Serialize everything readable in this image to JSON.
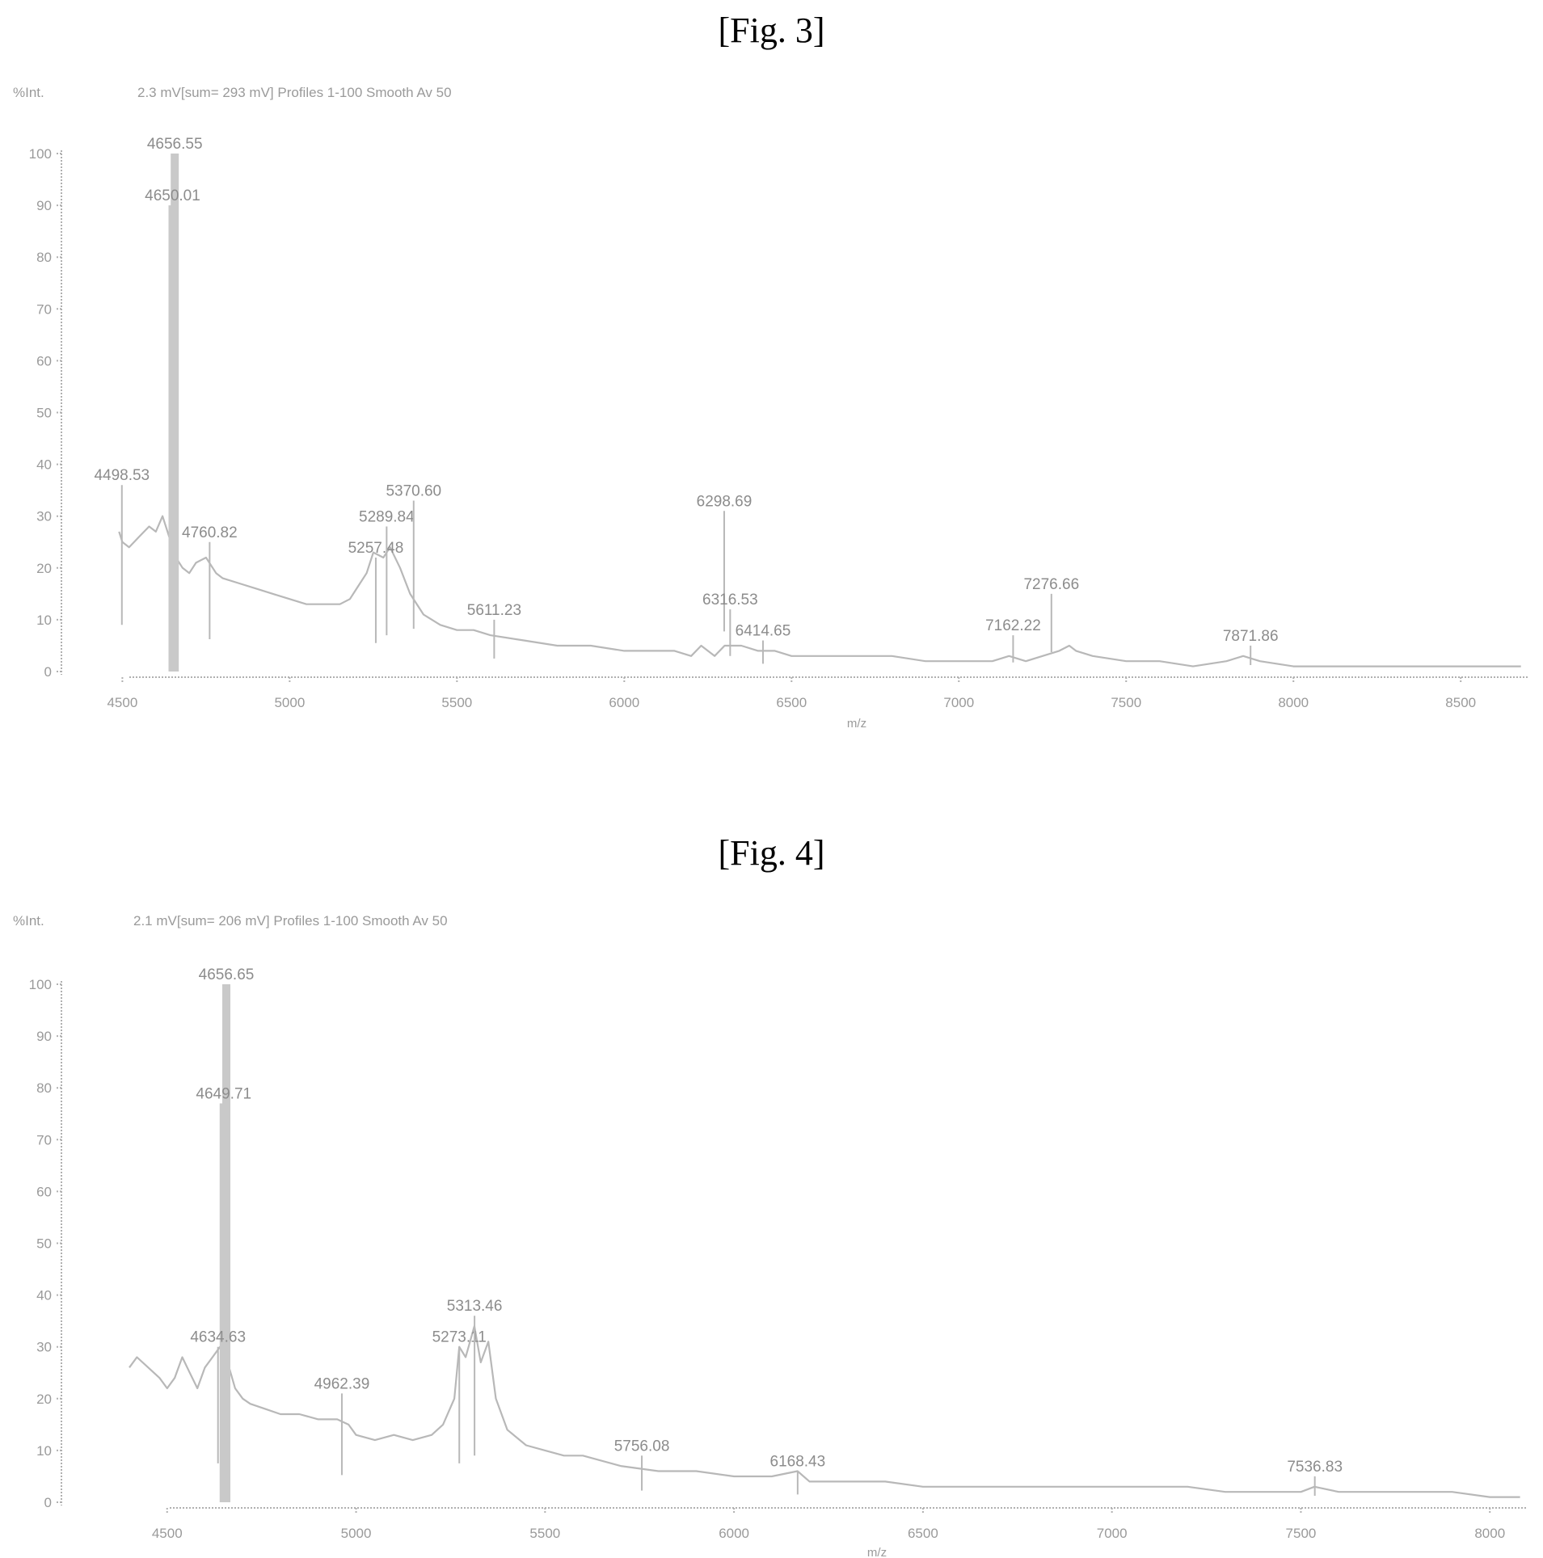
{
  "figures": {
    "fig3": {
      "title": "[Fig. 3]"
    },
    "fig4": {
      "title": "[Fig. 4]"
    }
  },
  "chart_data": [
    {
      "type": "line",
      "title": "2.3 mV[sum= 293 mV] Profiles 1-100 Smooth Av 50",
      "ylabel": "%Int.",
      "xlabel": "m/z",
      "ylim": [
        0,
        100
      ],
      "xlim": [
        4400,
        8700
      ],
      "yticks": [
        0,
        10,
        20,
        30,
        40,
        50,
        60,
        70,
        80,
        90,
        100
      ],
      "xticks": [
        4500,
        5000,
        5500,
        6000,
        6500,
        7000,
        7500,
        8000,
        8500
      ],
      "ytick_labels": [
        "0",
        "10",
        "20",
        "30",
        "40",
        "50",
        "60",
        "70",
        "80",
        "90",
        "100"
      ],
      "xtick_labels": [
        "4500",
        "5000",
        "5500",
        "6000",
        "6500",
        "7000",
        "7500",
        "8000",
        "8500"
      ],
      "baseline": [
        [
          4490,
          27
        ],
        [
          4500,
          25
        ],
        [
          4520,
          24
        ],
        [
          4550,
          26
        ],
        [
          4580,
          28
        ],
        [
          4600,
          27
        ],
        [
          4620,
          30
        ],
        [
          4640,
          26
        ],
        [
          4660,
          22
        ],
        [
          4680,
          20
        ],
        [
          4700,
          19
        ],
        [
          4720,
          21
        ],
        [
          4750,
          22
        ],
        [
          4780,
          19
        ],
        [
          4800,
          18
        ],
        [
          4850,
          17
        ],
        [
          4900,
          16
        ],
        [
          4950,
          15
        ],
        [
          5000,
          14
        ],
        [
          5050,
          13
        ],
        [
          5100,
          13
        ],
        [
          5150,
          13
        ],
        [
          5180,
          14
        ],
        [
          5200,
          16
        ],
        [
          5230,
          19
        ],
        [
          5250,
          23
        ],
        [
          5280,
          22
        ],
        [
          5300,
          24
        ],
        [
          5330,
          20
        ],
        [
          5360,
          15
        ],
        [
          5400,
          11
        ],
        [
          5450,
          9
        ],
        [
          5500,
          8
        ],
        [
          5550,
          8
        ],
        [
          5600,
          7
        ],
        [
          5700,
          6
        ],
        [
          5800,
          5
        ],
        [
          5900,
          5
        ],
        [
          6000,
          4
        ],
        [
          6100,
          4
        ],
        [
          6150,
          4
        ],
        [
          6200,
          3
        ],
        [
          6230,
          5
        ],
        [
          6270,
          3
        ],
        [
          6300,
          5
        ],
        [
          6350,
          5
        ],
        [
          6400,
          4
        ],
        [
          6450,
          4
        ],
        [
          6500,
          3
        ],
        [
          6600,
          3
        ],
        [
          6700,
          3
        ],
        [
          6800,
          3
        ],
        [
          6900,
          2
        ],
        [
          7000,
          2
        ],
        [
          7100,
          2
        ],
        [
          7150,
          3
        ],
        [
          7200,
          2
        ],
        [
          7250,
          3
        ],
        [
          7300,
          4
        ],
        [
          7330,
          5
        ],
        [
          7350,
          4
        ],
        [
          7400,
          3
        ],
        [
          7500,
          2
        ],
        [
          7600,
          2
        ],
        [
          7700,
          1
        ],
        [
          7800,
          2
        ],
        [
          7850,
          3
        ],
        [
          7900,
          2
        ],
        [
          8000,
          1
        ],
        [
          8100,
          1
        ],
        [
          8200,
          1
        ],
        [
          8300,
          1
        ],
        [
          8400,
          1
        ],
        [
          8500,
          1
        ],
        [
          8600,
          1
        ],
        [
          8680,
          1
        ]
      ],
      "peaks": [
        {
          "x": 4498.53,
          "y": 36,
          "label": "4498.53"
        },
        {
          "x": 4656.55,
          "y": 100,
          "label": "4656.55"
        },
        {
          "x": 4650.01,
          "y": 90,
          "label": "4650.01"
        },
        {
          "x": 4760.82,
          "y": 25,
          "label": "4760.82"
        },
        {
          "x": 5257.48,
          "y": 22,
          "label": "5257.48"
        },
        {
          "x": 5289.84,
          "y": 28,
          "label": "5289.84"
        },
        {
          "x": 5370.6,
          "y": 33,
          "label": "5370.60"
        },
        {
          "x": 5611.23,
          "y": 10,
          "label": "5611.23"
        },
        {
          "x": 6298.69,
          "y": 31,
          "label": "6298.69"
        },
        {
          "x": 6316.53,
          "y": 12,
          "label": "6316.53"
        },
        {
          "x": 6414.65,
          "y": 6,
          "label": "6414.65"
        },
        {
          "x": 7162.22,
          "y": 7,
          "label": "7162.22"
        },
        {
          "x": 7276.66,
          "y": 15,
          "label": "7276.66"
        },
        {
          "x": 7871.86,
          "y": 5,
          "label": "7871.86"
        }
      ]
    },
    {
      "type": "line",
      "title": "2.1 mV[sum= 206 mV] Profiles 1-100 Smooth Av 50",
      "ylabel": "%Int.",
      "xlabel": "m/z",
      "ylim": [
        0,
        100
      ],
      "xlim": [
        4400,
        8100
      ],
      "yticks": [
        0,
        10,
        20,
        30,
        40,
        50,
        60,
        70,
        80,
        90,
        100
      ],
      "xticks": [
        4500,
        5000,
        5500,
        6000,
        6500,
        7000,
        7500,
        8000
      ],
      "ytick_labels": [
        "0",
        "10",
        "20",
        "30",
        "40",
        "50",
        "60",
        "70",
        "80",
        "90",
        "100"
      ],
      "xtick_labels": [
        "4500",
        "5000",
        "5500",
        "6000",
        "6500",
        "7000",
        "7500",
        "8000"
      ],
      "baseline": [
        [
          4400,
          26
        ],
        [
          4420,
          28
        ],
        [
          4450,
          26
        ],
        [
          4480,
          24
        ],
        [
          4500,
          22
        ],
        [
          4520,
          24
        ],
        [
          4540,
          28
        ],
        [
          4560,
          25
        ],
        [
          4580,
          22
        ],
        [
          4600,
          26
        ],
        [
          4620,
          28
        ],
        [
          4640,
          30
        ],
        [
          4660,
          27
        ],
        [
          4680,
          22
        ],
        [
          4700,
          20
        ],
        [
          4720,
          19
        ],
        [
          4760,
          18
        ],
        [
          4800,
          17
        ],
        [
          4850,
          17
        ],
        [
          4900,
          16
        ],
        [
          4950,
          16
        ],
        [
          4980,
          15
        ],
        [
          5000,
          13
        ],
        [
          5050,
          12
        ],
        [
          5100,
          13
        ],
        [
          5150,
          12
        ],
        [
          5200,
          13
        ],
        [
          5230,
          15
        ],
        [
          5260,
          20
        ],
        [
          5273,
          30
        ],
        [
          5290,
          28
        ],
        [
          5313,
          34
        ],
        [
          5330,
          27
        ],
        [
          5350,
          31
        ],
        [
          5370,
          20
        ],
        [
          5400,
          14
        ],
        [
          5450,
          11
        ],
        [
          5500,
          10
        ],
        [
          5550,
          9
        ],
        [
          5600,
          9
        ],
        [
          5700,
          7
        ],
        [
          5800,
          6
        ],
        [
          5900,
          6
        ],
        [
          6000,
          5
        ],
        [
          6100,
          5
        ],
        [
          6168,
          6
        ],
        [
          6200,
          4
        ],
        [
          6300,
          4
        ],
        [
          6400,
          4
        ],
        [
          6500,
          3
        ],
        [
          6600,
          3
        ],
        [
          6700,
          3
        ],
        [
          6800,
          3
        ],
        [
          6900,
          3
        ],
        [
          7000,
          3
        ],
        [
          7100,
          3
        ],
        [
          7200,
          3
        ],
        [
          7300,
          2
        ],
        [
          7400,
          2
        ],
        [
          7500,
          2
        ],
        [
          7536,
          3
        ],
        [
          7600,
          2
        ],
        [
          7700,
          2
        ],
        [
          7800,
          2
        ],
        [
          7900,
          2
        ],
        [
          8000,
          1
        ],
        [
          8080,
          1
        ]
      ],
      "peaks": [
        {
          "x": 4656.65,
          "y": 100,
          "label": "4656.65"
        },
        {
          "x": 4649.71,
          "y": 77,
          "label": "4649.71"
        },
        {
          "x": 4634.63,
          "y": 30,
          "label": "4634.63"
        },
        {
          "x": 4962.39,
          "y": 21,
          "label": "4962.39"
        },
        {
          "x": 5273.11,
          "y": 30,
          "label": "5273.11"
        },
        {
          "x": 5313.46,
          "y": 36,
          "label": "5313.46"
        },
        {
          "x": 5756.08,
          "y": 9,
          "label": "5756.08"
        },
        {
          "x": 6168.43,
          "y": 6,
          "label": "6168.43"
        },
        {
          "x": 7536.83,
          "y": 5,
          "label": "7536.83"
        }
      ]
    }
  ]
}
